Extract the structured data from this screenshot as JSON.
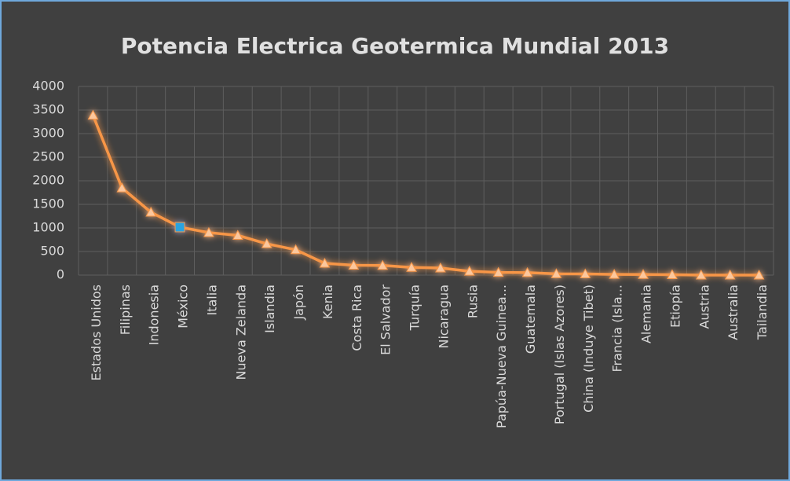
{
  "chart_data": {
    "type": "line",
    "title": "Potencia Electrica Geotermica Mundial 2013",
    "categories": [
      "Estados Unidos",
      "Filipinas",
      "Indonesia",
      "México",
      "Italia",
      "Nueva Zelanda",
      "Islandia",
      "Japón",
      "Kenia",
      "Costa Rica",
      "El Salvador",
      "Turquía",
      "Nicaragua",
      "Rusia",
      "Papúa-Nueva Guinea...",
      "Guatemala",
      "Portugal (Islas Azores)",
      "China (Induye Tibet)",
      "Francia (Isla...",
      "Alemania",
      "Etiopía",
      "Austria",
      "Australia",
      "Tailandia"
    ],
    "values": [
      3389,
      1848,
      1333,
      1017,
      901,
      842,
      664,
      537,
      250,
      208,
      204,
      163,
      150,
      82,
      56,
      52,
      28,
      24,
      15,
      13,
      8,
      1,
      1,
      0
    ],
    "color": "#f79646",
    "marker_color": "#fbc79d",
    "highlight": {
      "index": 3,
      "color": "#29a3e0"
    },
    "ylim": [
      0,
      4000
    ],
    "yticks": [
      0,
      500,
      1000,
      1500,
      2000,
      2500,
      3000,
      3500,
      4000
    ],
    "grid": true
  }
}
